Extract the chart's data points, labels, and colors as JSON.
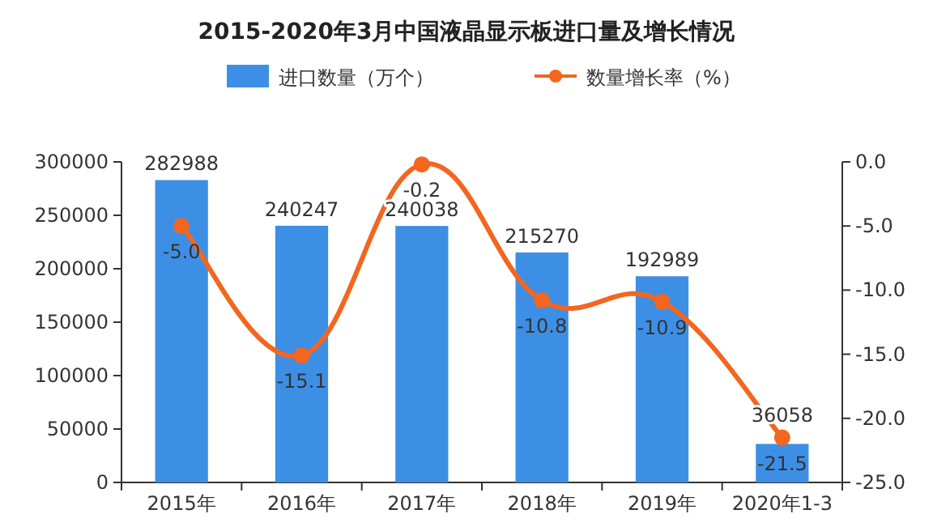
{
  "chart_data": {
    "type": "bar",
    "title": "2015-2020年3月中国液晶显示板进口量及增长情况",
    "categories": [
      "2015年",
      "2016年",
      "2017年",
      "2018年",
      "2019年",
      "2020年1-3"
    ],
    "series": [
      {
        "name": "进口数量（万个）",
        "color": "#3d8fe5",
        "values": [
          282988,
          240247,
          240038,
          215270,
          192989,
          36058
        ],
        "data_labels": true
      },
      {
        "name": "数量增长率（%）",
        "type": "line",
        "axis": "y2",
        "color": "#f2661f",
        "marker": "circle",
        "values": [
          -5.0,
          -15.1,
          -0.2,
          -10.8,
          -10.9,
          -21.5
        ],
        "value_labels": [
          "-5.0",
          "-15.1",
          "-0.2",
          "-10.8",
          "-10.9",
          "-21.5"
        ]
      }
    ],
    "ylim": [
      0,
      300000
    ],
    "yticks": [
      0,
      50000,
      100000,
      150000,
      200000,
      250000,
      300000
    ],
    "y2lim": [
      -25,
      0
    ],
    "y2ticks": [
      {
        "value": -25,
        "label": "-25.0"
      },
      {
        "value": -20,
        "label": "-20.0"
      },
      {
        "value": -15,
        "label": "-15.0"
      },
      {
        "value": -10,
        "label": "-10.0"
      },
      {
        "value": -5,
        "label": "-5.0"
      },
      {
        "value": 0,
        "label": "0.0"
      }
    ],
    "legend": "top",
    "grid": false
  }
}
